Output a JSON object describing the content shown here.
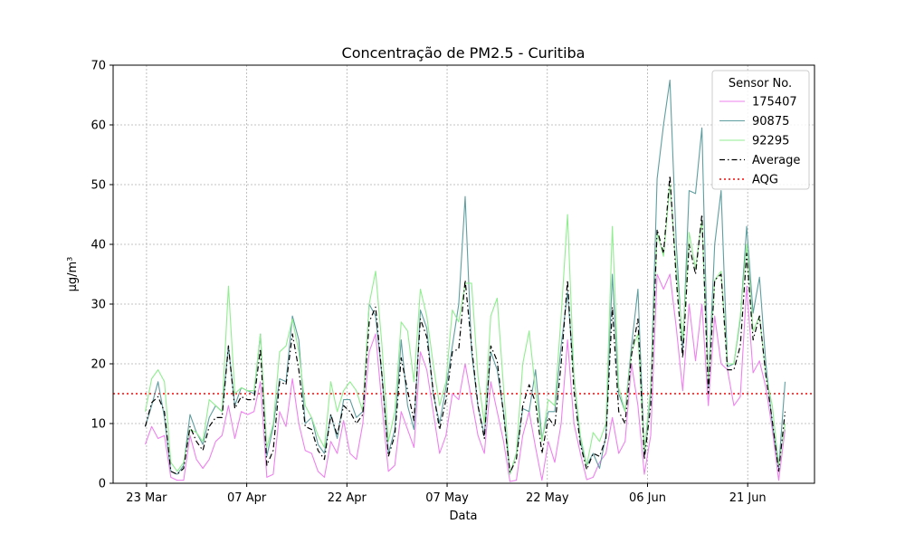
{
  "chart_data": {
    "type": "line",
    "title": "Concentração de PM2.5 - Curitiba",
    "xlabel": "Data",
    "ylabel": "µg/m³",
    "ylim": [
      0,
      70
    ],
    "yticks": [
      0,
      10,
      20,
      30,
      40,
      50,
      60,
      70
    ],
    "xticks": [
      {
        "label": "23 Mar",
        "day": 10
      },
      {
        "label": "07 Apr",
        "day": 25
      },
      {
        "label": "22 Apr",
        "day": 40
      },
      {
        "label": "07 May",
        "day": 55
      },
      {
        "label": "22 May",
        "day": 70
      },
      {
        "label": "06 Jun",
        "day": 85
      },
      {
        "label": "21 Jun",
        "day": 100
      }
    ],
    "xlim_days": [
      5,
      110
    ],
    "grid": true,
    "legend_title": "Sensor No.",
    "legend_position": "top-right",
    "aqg": {
      "name": "AQG",
      "value": 15,
      "color": "#ff0000"
    },
    "series": [
      {
        "name": "175407",
        "color": "#ee82ee",
        "dash": "",
        "values": [
          6.5,
          9.5,
          7.5,
          8,
          1,
          0.5,
          0.5,
          8,
          4,
          2.5,
          4,
          7,
          8,
          13,
          7.5,
          12,
          11.5,
          12,
          17,
          1,
          1.5,
          12,
          9.5,
          17.5,
          10,
          5.5,
          5,
          2,
          1,
          7,
          5,
          10.5,
          5,
          4,
          10,
          22,
          25,
          13,
          2,
          3,
          12,
          9,
          6,
          22,
          19,
          12,
          5,
          8,
          15,
          14,
          20,
          14,
          8,
          5,
          17,
          12,
          7,
          0.3,
          0.5,
          8,
          12,
          6,
          0.5,
          7,
          3.5,
          10,
          24,
          10,
          5,
          0.6,
          1,
          3.5,
          5,
          11,
          5,
          7,
          20,
          13,
          1.5,
          8,
          35,
          32.5,
          35,
          26,
          15.5,
          30,
          20.5,
          30,
          13,
          28,
          20,
          19,
          13,
          14.5,
          33,
          18.5,
          20.5,
          16,
          9,
          0.5,
          9
        ]
      },
      {
        "name": "90875",
        "color": "#5f9ea0",
        "dash": "",
        "values": [
          9.5,
          13,
          17,
          11,
          2,
          1.5,
          3,
          11.5,
          8.5,
          6.5,
          11,
          13,
          12,
          23,
          13,
          16,
          15.5,
          15,
          25,
          4.5,
          9.5,
          17.5,
          17,
          28,
          24,
          10,
          11,
          6.5,
          5,
          11.5,
          7.5,
          14,
          14,
          11,
          12,
          30,
          28,
          18,
          5,
          9,
          24,
          13,
          9,
          29,
          26,
          15,
          10,
          16,
          23,
          30,
          48,
          22,
          13,
          8,
          22,
          19,
          12,
          1.5,
          5,
          12.5,
          12,
          19,
          7.5,
          12,
          12,
          23,
          32,
          18,
          7,
          3,
          5,
          2.5,
          8,
          35,
          15,
          12,
          23,
          32.5,
          5,
          15,
          51,
          60,
          67.5,
          40,
          22,
          49,
          48.5,
          59.5,
          16,
          40,
          49,
          19.5,
          20,
          27.5,
          43,
          28.5,
          34.5,
          20,
          10,
          2.5,
          17
        ]
      },
      {
        "name": "92295",
        "color": "#90ee90",
        "dash": "",
        "values": [
          12,
          17.5,
          19,
          17,
          3.5,
          2,
          3.5,
          9,
          8.5,
          7,
          14,
          13,
          12,
          33,
          15,
          16,
          15.5,
          15.5,
          25,
          6,
          10,
          22,
          23,
          27.5,
          22,
          13,
          11,
          8,
          6,
          17,
          12,
          15.5,
          17,
          15.5,
          12,
          30,
          35.5,
          23,
          7,
          12,
          27,
          25.5,
          17,
          32.5,
          28,
          20,
          13,
          17,
          29,
          27,
          33.5,
          33.5,
          18,
          10,
          28,
          31,
          16,
          1.5,
          5,
          20,
          25.5,
          15.5,
          7,
          14,
          13,
          28,
          45,
          18,
          8,
          3,
          8.5,
          7,
          10,
          43,
          16,
          12,
          22,
          25,
          5.5,
          16,
          42,
          38,
          50,
          36,
          24,
          42,
          36,
          44,
          17,
          34,
          35.5,
          20,
          20,
          28,
          40,
          25.5,
          28,
          18,
          13,
          3,
          10
        ]
      },
      {
        "name": "Average",
        "color": "#000000",
        "dash": "6,3,1.5,3",
        "values": [
          9.5,
          13.5,
          14.5,
          12,
          2,
          1.5,
          2.5,
          9.5,
          7,
          5.5,
          9.5,
          11,
          11,
          23,
          12.5,
          14.5,
          14,
          14,
          22.5,
          3,
          5.5,
          17,
          16.5,
          25,
          19,
          9.5,
          9,
          5.5,
          4,
          11.5,
          8,
          13,
          12,
          10,
          11.5,
          27,
          29.5,
          18,
          4.5,
          8,
          21,
          15.5,
          10.5,
          27.5,
          24.5,
          15.5,
          9,
          14,
          22,
          22.5,
          34,
          23,
          13,
          7.5,
          23,
          20.5,
          11.5,
          1.8,
          4,
          13,
          16.5,
          13.5,
          5,
          11,
          9.5,
          20,
          34,
          15.5,
          6.5,
          2.3,
          5,
          4.5,
          7.5,
          29.5,
          12,
          10,
          21.5,
          27.5,
          4,
          13,
          42.5,
          38.5,
          51.5,
          34,
          21,
          40,
          35,
          45,
          15,
          34,
          35,
          19,
          19,
          23,
          38.5,
          24,
          28,
          18,
          10.5,
          2,
          12
        ]
      }
    ]
  }
}
